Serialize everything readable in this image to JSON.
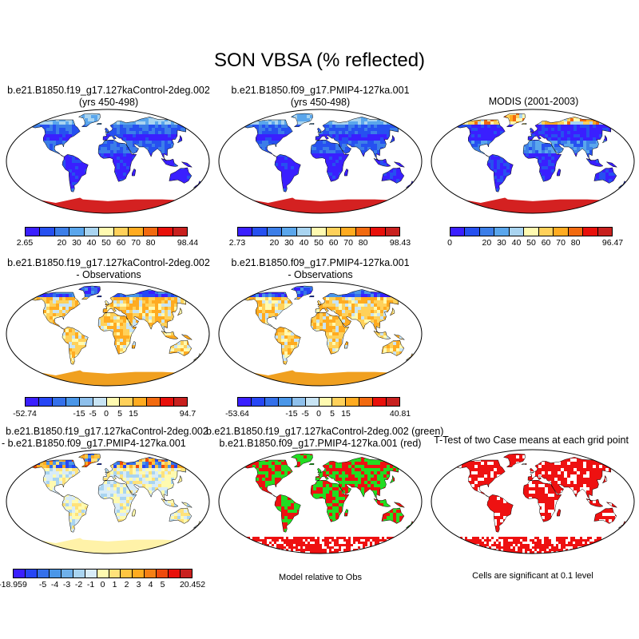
{
  "title": "SON VBSA (% reflected)",
  "colors": {
    "seq": [
      "#3a1fff",
      "#2650f0",
      "#3c7ee8",
      "#5aa6ec",
      "#a9d4f0",
      "#fffab0",
      "#ffd15a",
      "#ffab20",
      "#f26a0f",
      "#e8100a",
      "#c8201e"
    ],
    "diff": [
      "#3a1fff",
      "#2646f5",
      "#3470ea",
      "#4a96e8",
      "#8ec0ec",
      "#c8e4f4",
      "#fffab0",
      "#ffd15a",
      "#ffab20",
      "#f26a0f",
      "#e8100a",
      "#c8201e"
    ],
    "diff2": [
      "#3a1fff",
      "#2646f5",
      "#3470ea",
      "#4a96e8",
      "#6fb0ea",
      "#a9d4f0",
      "#d8ecf8",
      "#fffab0",
      "#ffe27a",
      "#ffc540",
      "#ffab20",
      "#f58015",
      "#ee4a0c",
      "#e8100a",
      "#c8201e"
    ],
    "land_green": "#22dd22",
    "land_red": "#ee1111",
    "antarctica_red": "#d42121",
    "antarctica_orange": "#f0a020",
    "antarctica_yellow": "#fff2a8"
  },
  "panels": [
    {
      "id": "p1",
      "title1": "b.e21.B1850.f19_g17.127kaControl-2deg.002",
      "title2": "(yrs 450-498)",
      "style": "abs"
    },
    {
      "id": "p2",
      "title1": "b.e21.B1850.f09_g17.PMIP4-127ka.001",
      "title2": "(yrs 450-498)",
      "style": "abs"
    },
    {
      "id": "p3",
      "title1": "MODIS (2001-2003)",
      "title2": "",
      "style": "obs"
    },
    {
      "id": "p4",
      "title1": "b.e21.B1850.f19_g17.127kaControl-2deg.002",
      "title2": "- Observations",
      "style": "diff"
    },
    {
      "id": "p5",
      "title1": "b.e21.B1850.f09_g17.PMIP4-127ka.001",
      "title2": "- Observations",
      "style": "diff"
    },
    {
      "id": "p7",
      "title1": "b.e21.B1850.f19_g17.127kaControl-2deg.002",
      "title2": "- b.e21.B1850.f09_g17.PMIP4-127ka.001",
      "style": "diff2"
    },
    {
      "id": "p8",
      "title1": "b.e21.B1850.f19_g17.127kaControl-2deg.002 (green)",
      "title2": "b.e21.B1850.f09_g17.PMIP4-127ka.001 (red)",
      "style": "greenred",
      "note": "Model relative to Obs"
    },
    {
      "id": "p9",
      "title1": "T-Test of two Case means at each grid point",
      "title2": "",
      "style": "ttest",
      "note": "Cells are significant at 0.1 level"
    }
  ],
  "colorbars": {
    "cb1": {
      "labels": [
        "2.65",
        "20",
        "30",
        "40",
        "50",
        "60",
        "70",
        "80",
        "98.44"
      ]
    },
    "cb2": {
      "labels": [
        "2.73",
        "20",
        "30",
        "40",
        "50",
        "60",
        "70",
        "80",
        "98.43"
      ]
    },
    "cb3": {
      "labels": [
        "0",
        "20",
        "30",
        "40",
        "50",
        "60",
        "70",
        "80",
        "96.47"
      ]
    },
    "cb4": {
      "labels": [
        "-52.74",
        "-15",
        "-5",
        "0",
        "5",
        "15",
        "94.7"
      ]
    },
    "cb5": {
      "labels": [
        "-53.64",
        "-15",
        "-5",
        "0",
        "5",
        "15",
        "40.81"
      ]
    },
    "cb7": {
      "labels": [
        "-18.959",
        "-5",
        "-4",
        "-3",
        "-2",
        "-1",
        "0",
        "1",
        "2",
        "3",
        "4",
        "5",
        "20.452"
      ]
    }
  }
}
